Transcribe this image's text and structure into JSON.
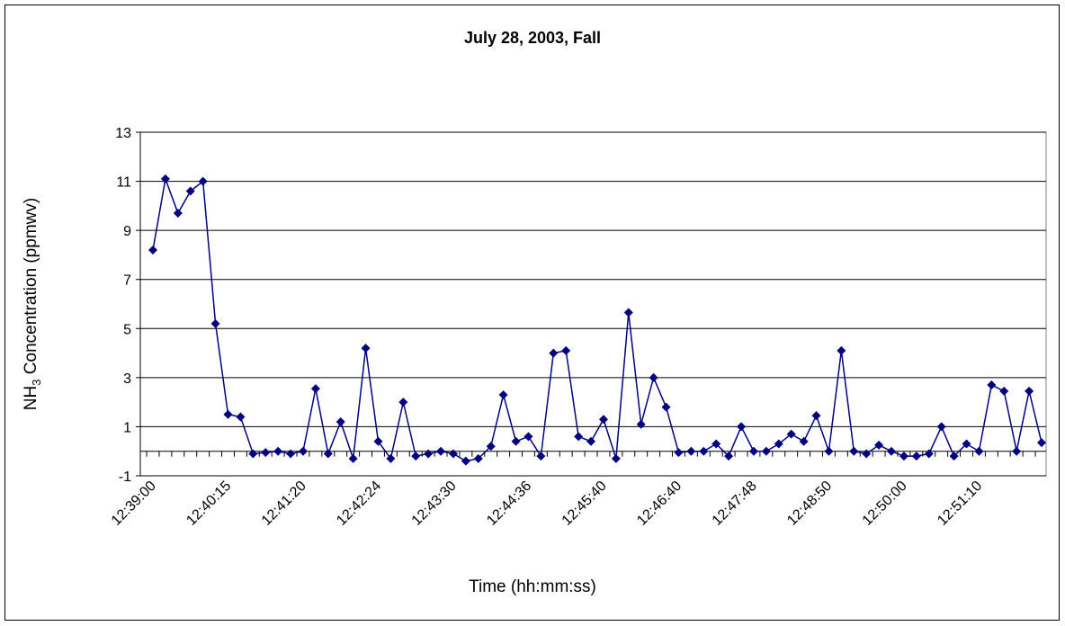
{
  "chart_data": {
    "type": "line",
    "title": "July 28, 2003, Fall",
    "x_label": "Time (hh:mm:ss)",
    "y_label_parts": [
      "NH",
      "3",
      " Concentration (ppmwv)"
    ],
    "categories": [
      "12:39:00",
      null,
      null,
      null,
      null,
      null,
      "12:40:15",
      null,
      null,
      null,
      null,
      null,
      "12:41:20",
      null,
      null,
      null,
      null,
      null,
      "12:42:24",
      null,
      null,
      null,
      null,
      null,
      "12:43:30",
      null,
      null,
      null,
      null,
      null,
      "12:44:36",
      null,
      null,
      null,
      null,
      null,
      "12:45:40",
      null,
      null,
      null,
      null,
      null,
      "12:46:40",
      null,
      null,
      null,
      null,
      null,
      "12:47:48",
      null,
      null,
      null,
      null,
      null,
      "12:48:50",
      null,
      null,
      null,
      null,
      null,
      "12:50:00",
      null,
      null,
      null,
      null,
      null,
      "12:51:10",
      null,
      null,
      null,
      null,
      null
    ],
    "values": [
      8.2,
      11.1,
      9.7,
      10.6,
      11.0,
      5.2,
      1.5,
      1.4,
      -0.1,
      -0.05,
      0.0,
      -0.1,
      0.0,
      2.55,
      -0.1,
      1.2,
      -0.3,
      4.2,
      0.4,
      -0.3,
      2.0,
      -0.2,
      -0.1,
      0.0,
      -0.1,
      -0.4,
      -0.3,
      0.2,
      2.3,
      0.4,
      0.6,
      -0.2,
      4.0,
      4.1,
      0.6,
      0.4,
      1.3,
      -0.3,
      5.65,
      1.1,
      3.0,
      1.8,
      -0.05,
      0.0,
      0.0,
      0.3,
      -0.2,
      1.0,
      0.0,
      0.0,
      0.3,
      0.7,
      0.4,
      1.45,
      0.0,
      4.1,
      0.0,
      -0.1,
      0.25,
      0.0,
      -0.2,
      -0.2,
      -0.1,
      1.0,
      -0.2,
      0.3,
      0.0,
      2.7,
      2.45,
      0.0,
      2.45,
      0.35
    ],
    "color": "#000080",
    "ylim": [
      -1,
      13
    ],
    "yticks": [
      -1,
      1,
      3,
      5,
      7,
      9,
      11,
      13
    ],
    "grid": true
  }
}
